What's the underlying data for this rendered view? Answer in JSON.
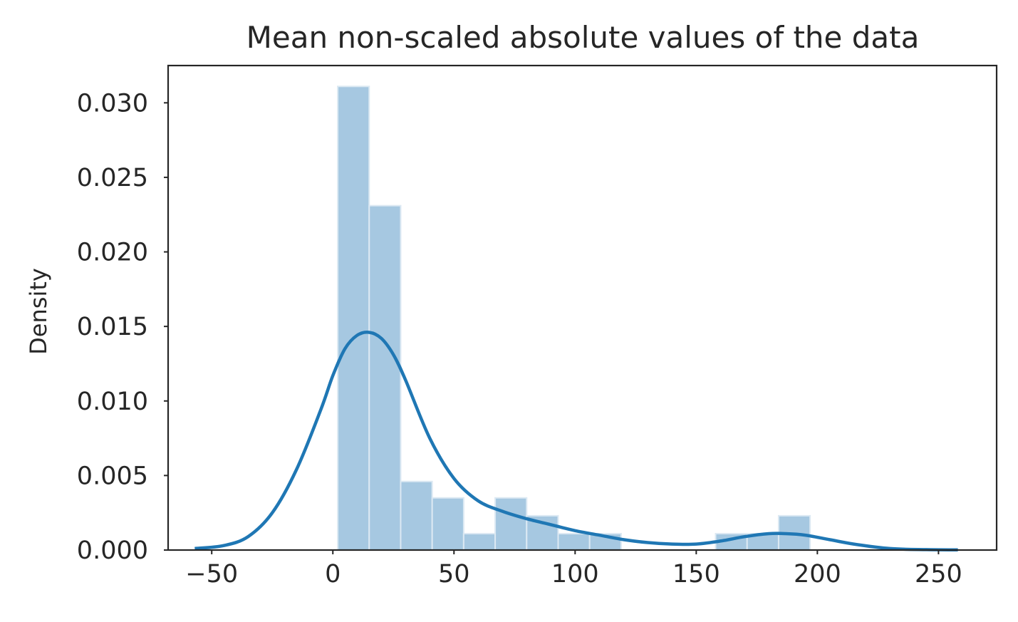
{
  "chart_data": {
    "type": "bar",
    "title": "Mean non-scaled absolute values of the data",
    "xlabel": "",
    "ylabel": "Density",
    "xlim": [
      -68,
      274
    ],
    "ylim": [
      0,
      0.0325
    ],
    "x_ticks": [
      {
        "value": -50,
        "label": "−50"
      },
      {
        "value": 0,
        "label": "0"
      },
      {
        "value": 50,
        "label": "50"
      },
      {
        "value": 100,
        "label": "100"
      },
      {
        "value": 150,
        "label": "150"
      },
      {
        "value": 200,
        "label": "200"
      },
      {
        "value": 250,
        "label": "250"
      }
    ],
    "y_ticks": [
      {
        "value": 0.0,
        "label": "0.000"
      },
      {
        "value": 0.005,
        "label": "0.005"
      },
      {
        "value": 0.01,
        "label": "0.010"
      },
      {
        "value": 0.015,
        "label": "0.015"
      },
      {
        "value": 0.02,
        "label": "0.020"
      },
      {
        "value": 0.025,
        "label": "0.025"
      },
      {
        "value": 0.03,
        "label": "0.030"
      }
    ],
    "histogram": {
      "color": "#a6c8e1",
      "edge_color": "#dce9f3",
      "bins": [
        {
          "x0": 2,
          "x1": 15,
          "density": 0.0311
        },
        {
          "x0": 15,
          "x1": 28,
          "density": 0.0231
        },
        {
          "x0": 28,
          "x1": 41,
          "density": 0.0046
        },
        {
          "x0": 41,
          "x1": 54,
          "density": 0.0035
        },
        {
          "x0": 54,
          "x1": 67,
          "density": 0.0011
        },
        {
          "x0": 67,
          "x1": 80,
          "density": 0.0035
        },
        {
          "x0": 80,
          "x1": 93,
          "density": 0.0023
        },
        {
          "x0": 93,
          "x1": 106,
          "density": 0.0011
        },
        {
          "x0": 106,
          "x1": 119,
          "density": 0.0011
        },
        {
          "x0": 119,
          "x1": 132,
          "density": 0
        },
        {
          "x0": 132,
          "x1": 145,
          "density": 0
        },
        {
          "x0": 145,
          "x1": 158,
          "density": 0
        },
        {
          "x0": 158,
          "x1": 171,
          "density": 0.0011
        },
        {
          "x0": 171,
          "x1": 184,
          "density": 0.0011
        },
        {
          "x0": 184,
          "x1": 197,
          "density": 0.0023
        }
      ]
    },
    "kde": {
      "color": "#1f77b4",
      "x": [
        -57,
        -45,
        -35,
        -25,
        -15,
        -5,
        0,
        5,
        10,
        15,
        20,
        25,
        30,
        40,
        50,
        60,
        70,
        80,
        90,
        100,
        110,
        120,
        130,
        140,
        150,
        160,
        170,
        180,
        187,
        195,
        205,
        215,
        230,
        245,
        258
      ],
      "y": [
        0.0001,
        0.0003,
        0.0009,
        0.0025,
        0.0054,
        0.0094,
        0.0117,
        0.0135,
        0.0144,
        0.0146,
        0.0142,
        0.0131,
        0.0114,
        0.0075,
        0.0048,
        0.0033,
        0.0026,
        0.0021,
        0.0017,
        0.0013,
        0.001,
        0.0007,
        0.0005,
        0.0004,
        0.0004,
        0.0006,
        0.0009,
        0.0011,
        0.0011,
        0.001,
        0.0007,
        0.0004,
        0.0001,
        3e-05,
        1e-05
      ]
    },
    "grid": false
  }
}
